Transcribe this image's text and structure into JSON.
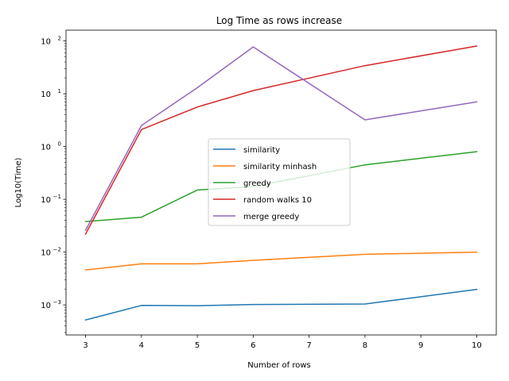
{
  "chart_data": {
    "type": "line",
    "title": "Log Time as rows increase",
    "xlabel": "Number of rows",
    "ylabel": "Log10(Time)",
    "yscale": "log",
    "xlim": [
      2.65,
      10.35
    ],
    "ylim": [
      0.00027,
      160
    ],
    "x_ticks": [
      "3",
      "4",
      "5",
      "6",
      "7",
      "8",
      "9",
      "10"
    ],
    "y_ticks": [
      {
        "value": 0.001,
        "base": "10",
        "exp": "−3"
      },
      {
        "value": 0.01,
        "base": "10",
        "exp": "−2"
      },
      {
        "value": 0.1,
        "base": "10",
        "exp": "−1"
      },
      {
        "value": 1,
        "base": "10",
        "exp": "0"
      },
      {
        "value": 10,
        "base": "10",
        "exp": "1"
      },
      {
        "value": 100,
        "base": "10",
        "exp": "2"
      }
    ],
    "x": [
      3,
      4,
      5,
      6,
      8,
      10
    ],
    "series": [
      {
        "name": "similarity",
        "color": "#1f77b4",
        "values": [
          0.00052,
          0.00098,
          0.00097,
          0.00102,
          0.00104,
          0.00197
        ]
      },
      {
        "name": "similarity minhash",
        "color": "#ff7f0e",
        "values": [
          0.0046,
          0.006,
          0.006,
          0.007,
          0.0091,
          0.01
        ]
      },
      {
        "name": "greedy",
        "color": "#2ca02c",
        "values": [
          0.038,
          0.046,
          0.15,
          0.175,
          0.45,
          0.8
        ]
      },
      {
        "name": "random walks 10",
        "color": "#d62728",
        "values": [
          0.022,
          2.1,
          5.6,
          11.5,
          34,
          80
        ]
      },
      {
        "name": "merge greedy",
        "color": "#9467bd",
        "values": [
          0.026,
          2.5,
          13,
          77,
          3.2,
          7
        ]
      }
    ],
    "legend_position": "center-right"
  }
}
